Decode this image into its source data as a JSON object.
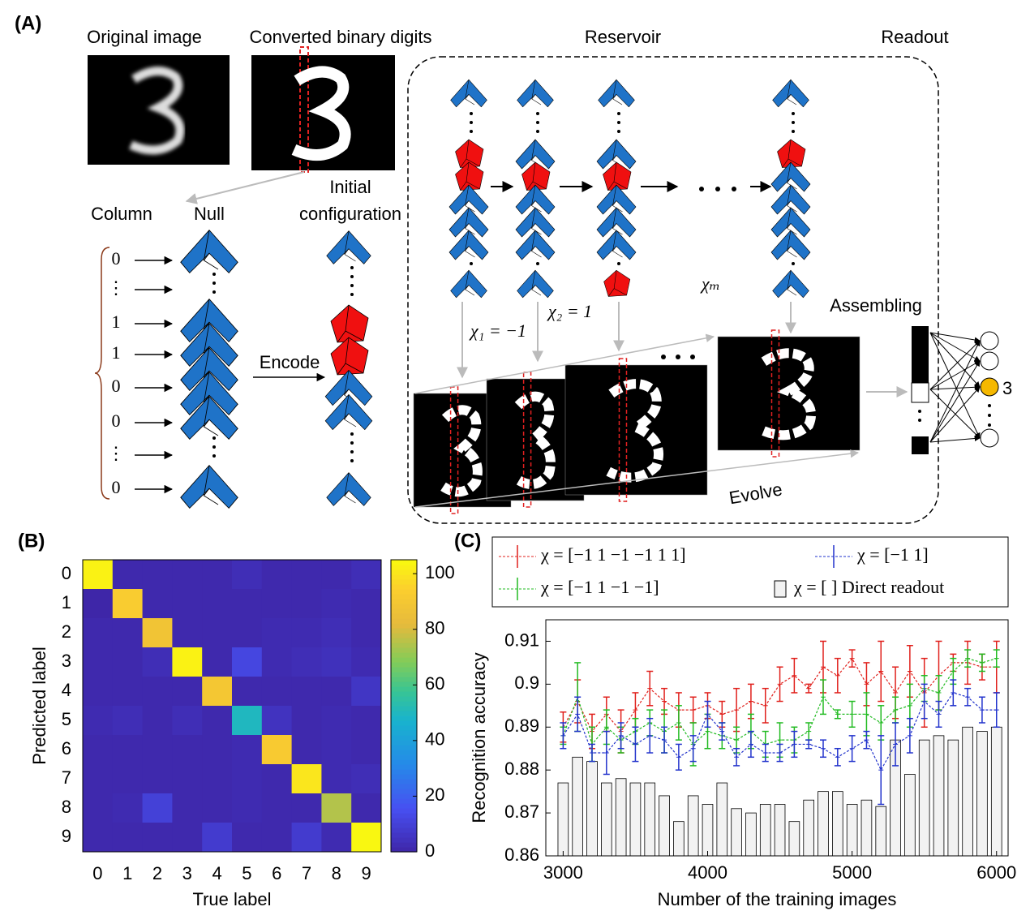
{
  "panel_a": {
    "label": "(A)",
    "original_image": "Original image",
    "converted": "Converted binary digits",
    "reservoir": "Reservoir",
    "readout": "Readout",
    "column": "Column",
    "null": "Null",
    "initial": "Initial",
    "configuration": "configuration",
    "digits": [
      "0",
      "⋮",
      "1",
      "1",
      "0",
      "0",
      "⋮",
      "0"
    ],
    "encode": "Encode",
    "assembling": "Assembling",
    "evolve": "Evolve",
    "chi_1": "χ₁ = −1",
    "chi_2": "χ₂ = 1",
    "chi_m": "χₘ",
    "output": "3"
  },
  "chart_data": [
    {
      "type": "heatmap",
      "label": "(B)",
      "xlabel": "True label",
      "ylabel": "Predicted label",
      "colormap": "parula",
      "categories": [
        "0",
        "1",
        "2",
        "3",
        "4",
        "5",
        "6",
        "7",
        "8",
        "9"
      ],
      "values": [
        [
          103,
          1,
          1,
          1,
          1,
          3,
          1,
          1,
          1,
          3
        ],
        [
          0,
          93,
          1,
          1,
          1,
          1,
          1,
          1,
          2,
          1
        ],
        [
          1,
          1,
          88,
          1,
          1,
          1,
          2,
          2,
          3,
          1
        ],
        [
          1,
          1,
          3,
          103,
          1,
          12,
          2,
          3,
          4,
          2
        ],
        [
          1,
          1,
          1,
          1,
          90,
          1,
          1,
          1,
          1,
          6
        ],
        [
          2,
          3,
          1,
          3,
          1,
          50,
          5,
          1,
          2,
          1
        ],
        [
          1,
          1,
          1,
          1,
          1,
          2,
          92,
          1,
          2,
          1
        ],
        [
          1,
          1,
          1,
          1,
          1,
          2,
          1,
          100,
          2,
          3
        ],
        [
          1,
          2,
          10,
          1,
          1,
          2,
          1,
          1,
          75,
          1
        ],
        [
          1,
          1,
          1,
          1,
          8,
          1,
          1,
          8,
          2,
          104
        ]
      ],
      "zlim": [
        0,
        105
      ],
      "zticks": [
        0,
        20,
        40,
        60,
        80,
        100
      ]
    },
    {
      "type": "errorbar",
      "label": "(C)",
      "xlabel": "Number of the training images",
      "ylabel": "Recognition accuracy",
      "x": [
        3000,
        3100,
        3200,
        3300,
        3400,
        3500,
        3600,
        3700,
        3800,
        3900,
        4000,
        4100,
        4200,
        4300,
        4400,
        4500,
        4600,
        4700,
        4800,
        4900,
        5000,
        5100,
        5200,
        5300,
        5400,
        5500,
        5600,
        5700,
        5800,
        5900,
        6000
      ],
      "xlim": [
        2880,
        6080
      ],
      "xticks": [
        3000,
        4000,
        5000,
        6000
      ],
      "ylim": [
        0.86,
        0.915
      ],
      "yticks": [
        0.86,
        0.87,
        0.88,
        0.89,
        0.9,
        0.91
      ],
      "series": [
        {
          "name": "χ = [−1   1   −1   −1   1   1]",
          "type": "line",
          "color": "#e0201c",
          "values": [
            0.89,
            0.896,
            0.889,
            0.893,
            0.889,
            0.894,
            0.899,
            0.896,
            0.894,
            0.894,
            0.895,
            0.893,
            0.894,
            0.896,
            0.895,
            0.9,
            0.902,
            0.899,
            0.904,
            0.902,
            0.906,
            0.9,
            0.903,
            0.898,
            0.903,
            0.898,
            0.902,
            0.905,
            0.905,
            0.904,
            0.904
          ],
          "errors": [
            0.0035,
            0.005,
            0.004,
            0.004,
            0.005,
            0.004,
            0.004,
            0.003,
            0.004,
            0.003,
            0.003,
            0.003,
            0.005,
            0.004,
            0.004,
            0.004,
            0.004,
            0.001,
            0.006,
            0.004,
            0.002,
            0.005,
            0.007,
            0.006,
            0.006,
            0.008,
            0.008,
            0.002,
            0.005,
            0.003,
            0.006
          ]
        },
        {
          "name": "χ = [−1   1   −1   −1]",
          "type": "line",
          "color": "#22bb22",
          "values": [
            0.888,
            0.897,
            0.886,
            0.89,
            0.887,
            0.889,
            0.891,
            0.889,
            0.891,
            0.886,
            0.889,
            0.888,
            0.887,
            0.889,
            0.886,
            0.887,
            0.887,
            0.889,
            0.897,
            0.893,
            0.893,
            0.893,
            0.891,
            0.894,
            0.895,
            0.899,
            0.898,
            0.903,
            0.906,
            0.905,
            0.906
          ],
          "errors": [
            0.002,
            0.008,
            0.004,
            0.004,
            0.003,
            0.003,
            0.003,
            0.005,
            0.004,
            0.005,
            0.004,
            0.003,
            0.003,
            0.004,
            0.003,
            0.004,
            0.003,
            0.002,
            0.004,
            0.001,
            0.003,
            0.005,
            0.004,
            0.003,
            0.005,
            0.003,
            0.004,
            0.003,
            0.002,
            0.002,
            0.002
          ]
        },
        {
          "name": "χ = [−1   1]",
          "type": "line",
          "color": "#2233cc",
          "values": [
            0.888,
            0.893,
            0.884,
            0.884,
            0.888,
            0.886,
            0.888,
            0.887,
            0.883,
            0.885,
            0.893,
            0.889,
            0.883,
            0.886,
            0.884,
            0.884,
            0.886,
            0.886,
            0.885,
            0.883,
            0.885,
            0.887,
            0.88,
            0.886,
            0.888,
            0.896,
            0.893,
            0.898,
            0.897,
            0.894,
            0.894
          ],
          "errors": [
            0.003,
            0.004,
            0.002,
            0.005,
            0.003,
            0.004,
            0.004,
            0.003,
            0.003,
            0.003,
            0.003,
            0.002,
            0.002,
            0.003,
            0.002,
            0.002,
            0.003,
            0.001,
            0.002,
            0.002,
            0.003,
            0.002,
            0.008,
            0.005,
            0.004,
            0.004,
            0.003,
            0.003,
            0.002,
            0.003,
            0.004
          ]
        },
        {
          "name": "χ = [   ]  Direct readout",
          "type": "bar",
          "color": "#f2f2f2",
          "values": [
            0.877,
            0.883,
            0.882,
            0.877,
            0.878,
            0.877,
            0.877,
            0.874,
            0.868,
            0.874,
            0.872,
            0.877,
            0.871,
            0.87,
            0.872,
            0.872,
            0.868,
            0.873,
            0.875,
            0.875,
            0.872,
            0.873,
            0.8715,
            0.887,
            0.879,
            0.887,
            0.888,
            0.887,
            0.89,
            0.889,
            0.89
          ]
        }
      ]
    }
  ]
}
